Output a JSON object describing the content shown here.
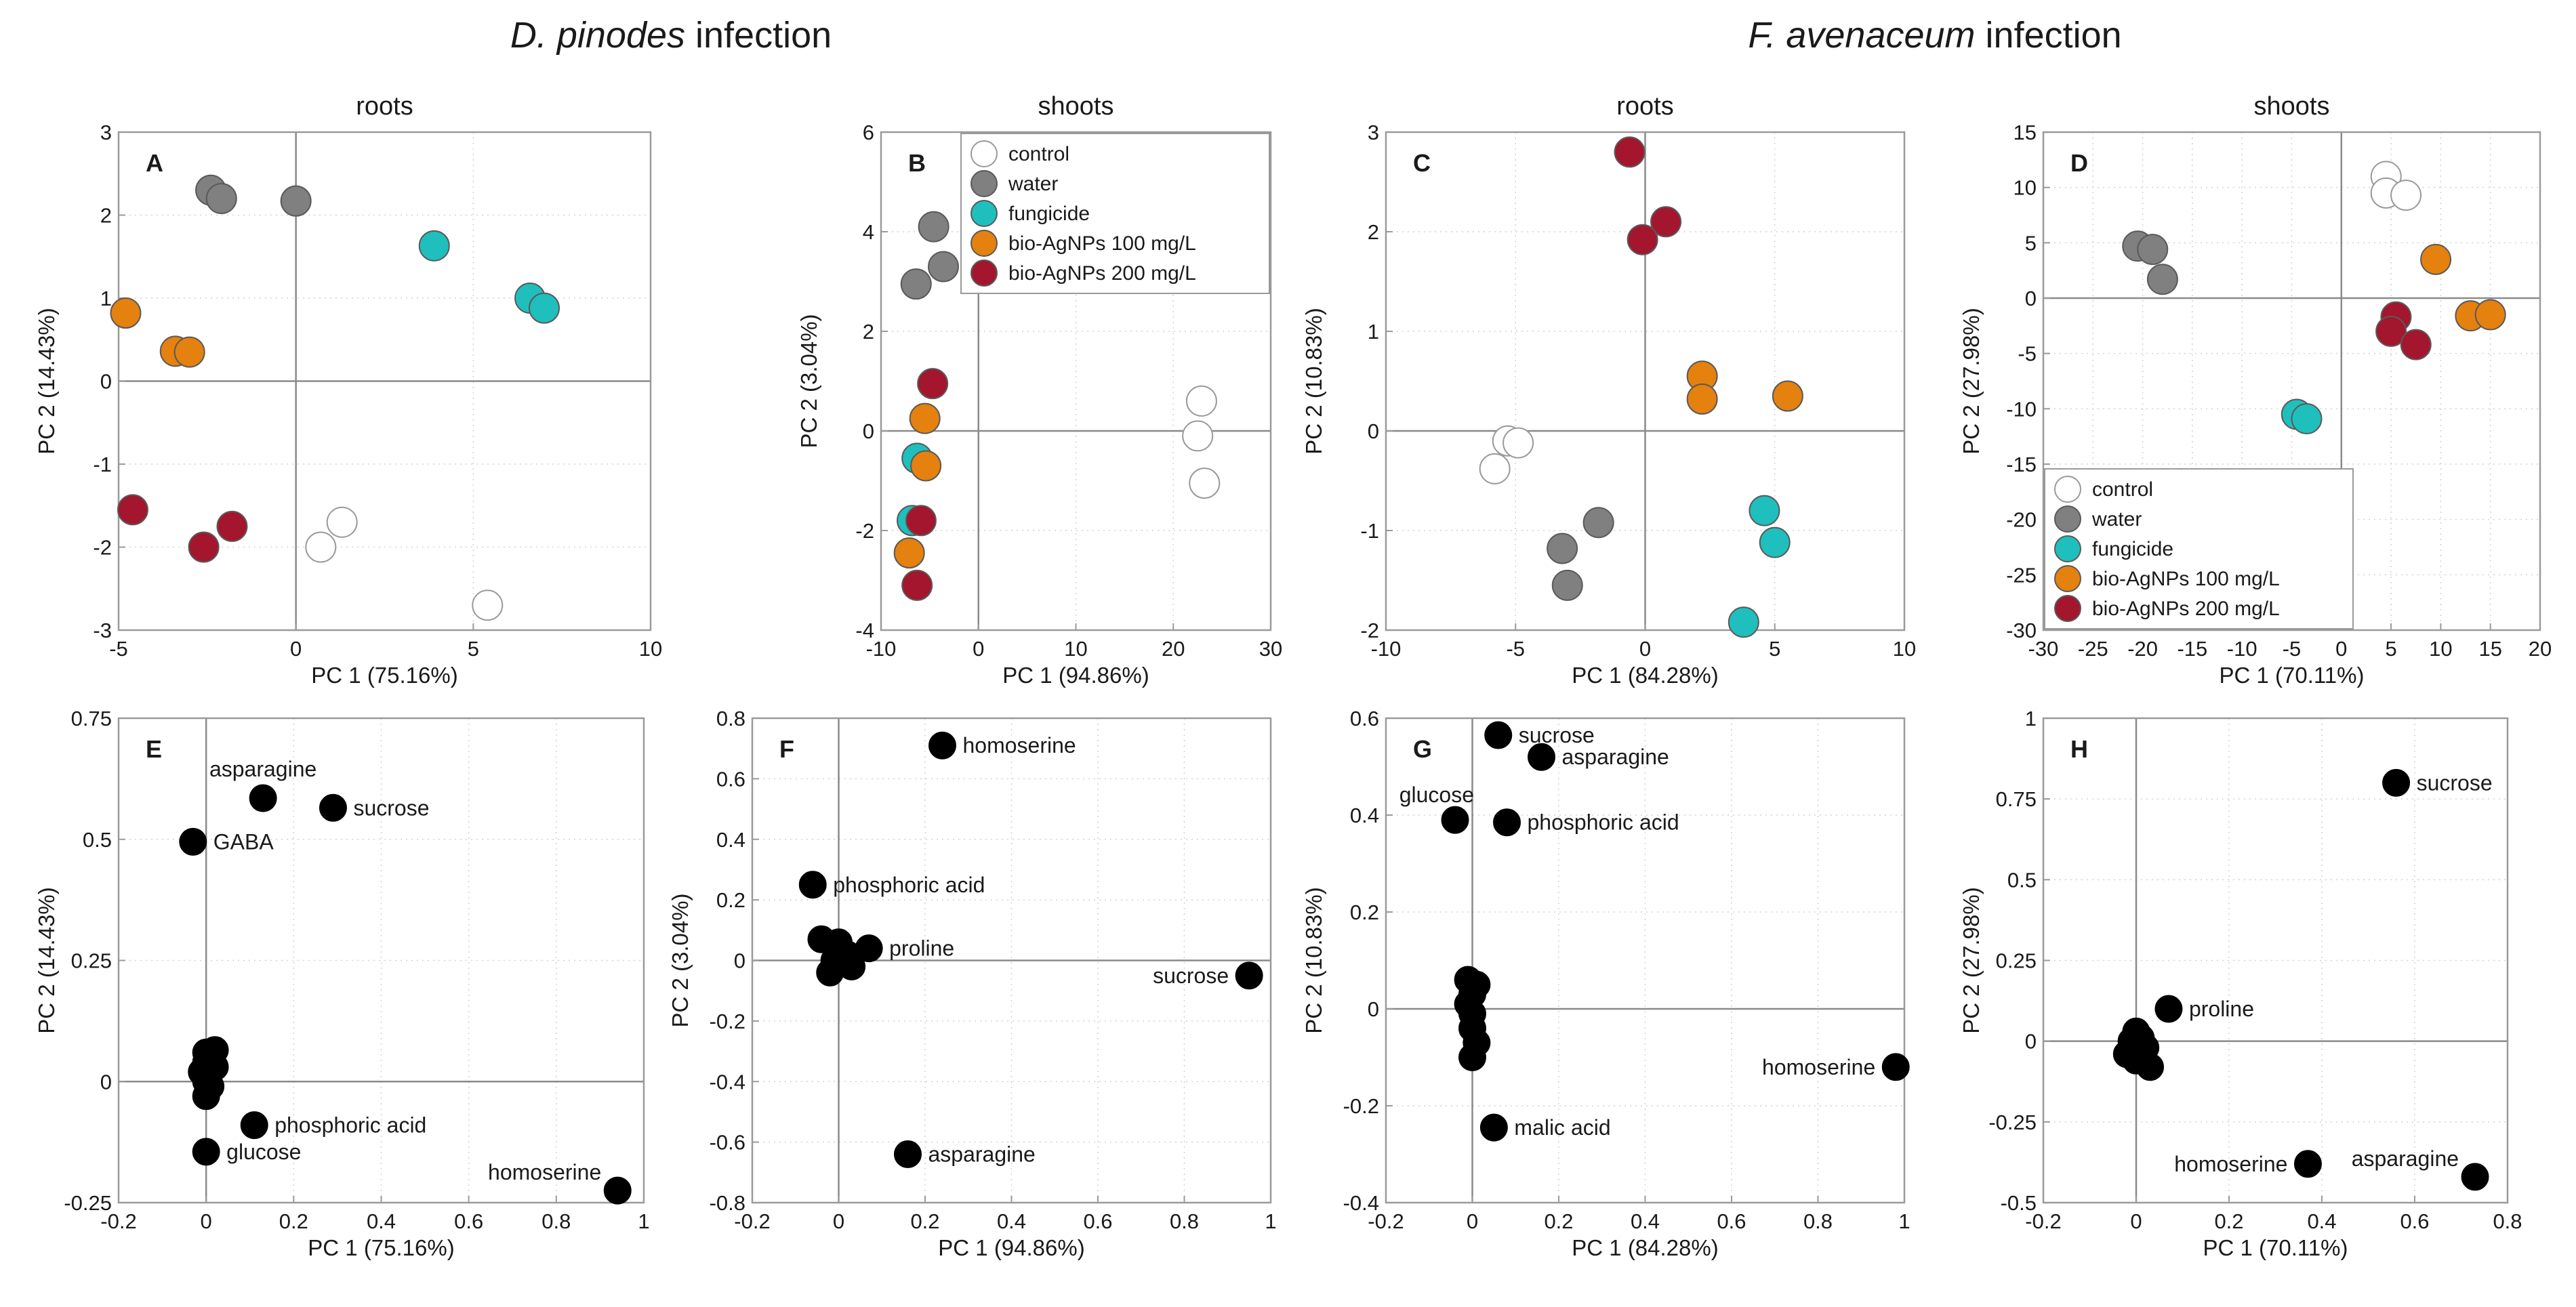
{
  "figure": {
    "section_titles": [
      {
        "species": "D. pinodes",
        "suffix": " infection"
      },
      {
        "species": "F. avenaceum",
        "suffix": " infection"
      }
    ]
  },
  "colors": {
    "control": "#ffffff",
    "water": "#808080",
    "fungicide": "#1fbfbd",
    "bio-AgNPs 100 mg/L": "#e5810f",
    "bio-AgNPs 200 mg/L": "#a3162e",
    "metabolite": "#000000"
  },
  "chart_data": [
    {
      "id": "A",
      "type": "scatter",
      "title": "roots",
      "xlabel": "PC 1 (75.16%)",
      "ylabel": "PC 2 (14.43%)",
      "xlim": [
        -5,
        10
      ],
      "ylim": [
        -3,
        3
      ],
      "xticks": [
        -5,
        0,
        5,
        10
      ],
      "yticks": [
        -3,
        -2,
        -1,
        0,
        1,
        2,
        3
      ],
      "series": [
        {
          "name": "control",
          "points": [
            [
              0.7,
              -2.0
            ],
            [
              1.3,
              -1.7
            ],
            [
              5.4,
              -2.7
            ]
          ]
        },
        {
          "name": "water",
          "points": [
            [
              -2.4,
              2.3
            ],
            [
              -2.1,
              2.2
            ],
            [
              0.0,
              2.17
            ]
          ]
        },
        {
          "name": "fungicide",
          "points": [
            [
              3.9,
              1.63
            ],
            [
              6.6,
              1.0
            ],
            [
              7.0,
              0.88
            ]
          ]
        },
        {
          "name": "bio-AgNPs 100 mg/L",
          "points": [
            [
              -4.8,
              0.82
            ],
            [
              -3.4,
              0.36
            ],
            [
              -3.0,
              0.35
            ]
          ]
        },
        {
          "name": "bio-AgNPs 200 mg/L",
          "points": [
            [
              -4.6,
              -1.55
            ],
            [
              -2.6,
              -2.0
            ],
            [
              -1.8,
              -1.75
            ]
          ]
        }
      ]
    },
    {
      "id": "B",
      "type": "scatter",
      "title": "shoots",
      "xlabel": "PC 1 (94.86%)",
      "ylabel": "PC 2 (3.04%)",
      "xlim": [
        -10,
        30
      ],
      "ylim": [
        -4,
        6
      ],
      "xticks": [
        -10,
        0,
        10,
        20,
        30
      ],
      "yticks": [
        -4,
        -2,
        0,
        2,
        4,
        6
      ],
      "legend": {
        "position": "top-right",
        "entries": [
          "control",
          "water",
          "fungicide",
          "bio-AgNPs 100 mg/L",
          "bio-AgNPs 200 mg/L"
        ]
      },
      "series": [
        {
          "name": "control",
          "points": [
            [
              22.9,
              0.6
            ],
            [
              22.5,
              -0.1
            ],
            [
              23.2,
              -1.05
            ]
          ]
        },
        {
          "name": "water",
          "points": [
            [
              -6.4,
              2.95
            ],
            [
              -4.6,
              4.1
            ],
            [
              -3.6,
              3.3
            ]
          ]
        },
        {
          "name": "fungicide",
          "points": [
            [
              -6.3,
              -0.55
            ],
            [
              -6.8,
              -1.8
            ]
          ]
        },
        {
          "name": "bio-AgNPs 100 mg/L",
          "points": [
            [
              -5.5,
              0.25
            ],
            [
              -5.4,
              -0.7
            ],
            [
              -7.1,
              -2.45
            ]
          ]
        },
        {
          "name": "bio-AgNPs 200 mg/L",
          "points": [
            [
              -4.7,
              0.95
            ],
            [
              -5.9,
              -1.8
            ],
            [
              -6.3,
              -3.1
            ]
          ]
        }
      ]
    },
    {
      "id": "C",
      "type": "scatter",
      "title": "roots",
      "xlabel": "PC 1 (84.28%)",
      "ylabel": "PC 2 (10.83%)",
      "xlim": [
        -10,
        10
      ],
      "ylim": [
        -2,
        3
      ],
      "xticks": [
        -10,
        -5,
        0,
        5,
        10
      ],
      "yticks": [
        -2,
        -1,
        0,
        1,
        2,
        3
      ],
      "series": [
        {
          "name": "control",
          "points": [
            [
              -5.3,
              -0.1
            ],
            [
              -4.9,
              -0.12
            ],
            [
              -5.8,
              -0.38
            ]
          ]
        },
        {
          "name": "water",
          "points": [
            [
              -3.2,
              -1.18
            ],
            [
              -1.8,
              -0.92
            ],
            [
              -3.0,
              -1.55
            ]
          ]
        },
        {
          "name": "fungicide",
          "points": [
            [
              4.6,
              -0.8
            ],
            [
              5.0,
              -1.12
            ],
            [
              3.8,
              -1.92
            ]
          ]
        },
        {
          "name": "bio-AgNPs 100 mg/L",
          "points": [
            [
              2.2,
              0.55
            ],
            [
              2.2,
              0.32
            ],
            [
              5.5,
              0.35
            ]
          ]
        },
        {
          "name": "bio-AgNPs 200 mg/L",
          "points": [
            [
              -0.6,
              2.8
            ],
            [
              0.8,
              2.1
            ],
            [
              -0.1,
              1.92
            ]
          ]
        }
      ]
    },
    {
      "id": "D",
      "type": "scatter",
      "title": "shoots",
      "xlabel": "PC 1 (70.11%)",
      "ylabel": "PC 2 (27.98%)",
      "xlim": [
        -30,
        20
      ],
      "ylim": [
        -30,
        15
      ],
      "xticks": [
        -30,
        -25,
        -20,
        -15,
        -10,
        -5,
        0,
        5,
        10,
        15,
        20
      ],
      "yticks": [
        -30,
        -25,
        -20,
        -15,
        -10,
        -5,
        0,
        5,
        10,
        15
      ],
      "legend": {
        "position": "bottom-left",
        "entries": [
          "control",
          "water",
          "fungicide",
          "bio-AgNPs 100 mg/L",
          "bio-AgNPs 200 mg/L"
        ]
      },
      "series": [
        {
          "name": "control",
          "points": [
            [
              4.5,
              11.0
            ],
            [
              4.5,
              9.5
            ],
            [
              6.5,
              9.3
            ]
          ]
        },
        {
          "name": "water",
          "points": [
            [
              -20.5,
              4.7
            ],
            [
              -19.0,
              4.4
            ],
            [
              -18.0,
              1.7
            ]
          ]
        },
        {
          "name": "fungicide",
          "points": [
            [
              -4.5,
              -10.5
            ],
            [
              -3.5,
              -10.9
            ]
          ]
        },
        {
          "name": "bio-AgNPs 100 mg/L",
          "points": [
            [
              9.5,
              3.5
            ],
            [
              13.0,
              -1.6
            ],
            [
              15.0,
              -1.5
            ]
          ]
        },
        {
          "name": "bio-AgNPs 200 mg/L",
          "points": [
            [
              5.5,
              -1.7
            ],
            [
              5.0,
              -3.0
            ],
            [
              7.5,
              -4.2
            ]
          ]
        }
      ]
    },
    {
      "id": "E",
      "type": "scatter",
      "xlabel": "PC 1 (75.16%)",
      "ylabel": "PC 2 (14.43%)",
      "xlim": [
        -0.2,
        1
      ],
      "ylim": [
        -0.25,
        0.75
      ],
      "xticks": [
        -0.2,
        0,
        0.2,
        0.4,
        0.6,
        0.8,
        1
      ],
      "xticklabels": [
        "-0.2",
        "0",
        "0.2",
        "0.4",
        "0.6",
        "0.8",
        "1"
      ],
      "yticks": [
        -0.25,
        0,
        0.25,
        0.5,
        0.75
      ],
      "yticklabels": [
        "-0.25",
        "0",
        "0.25",
        "0.5",
        "0.75"
      ],
      "points": [
        {
          "x": 0.13,
          "y": 0.585,
          "label": "asparagine",
          "label_side": "above"
        },
        {
          "x": 0.29,
          "y": 0.565,
          "label": "sucrose",
          "label_side": "right"
        },
        {
          "x": -0.03,
          "y": 0.495,
          "label": "GABA",
          "label_side": "right"
        },
        {
          "x": 0.11,
          "y": -0.09,
          "label": "phosphoric acid",
          "label_side": "right"
        },
        {
          "x": 0.0,
          "y": -0.145,
          "label": "glucose",
          "label_side": "right"
        },
        {
          "x": 0.94,
          "y": -0.225,
          "label": "homoserine",
          "label_side": "left-above"
        },
        {
          "x": 0.0,
          "y": 0.06
        },
        {
          "x": 0.02,
          "y": 0.065
        },
        {
          "x": 0.0,
          "y": 0.04
        },
        {
          "x": 0.02,
          "y": 0.03
        },
        {
          "x": -0.01,
          "y": 0.02
        },
        {
          "x": 0.0,
          "y": 0.0
        },
        {
          "x": 0.01,
          "y": -0.01
        },
        {
          "x": 0.0,
          "y": -0.03
        }
      ]
    },
    {
      "id": "F",
      "type": "scatter",
      "xlabel": "PC 1 (94.86%)",
      "ylabel": "PC 2 (3.04%)",
      "xlim": [
        -0.2,
        1
      ],
      "ylim": [
        -0.8,
        0.8
      ],
      "xticks": [
        -0.2,
        0,
        0.2,
        0.4,
        0.6,
        0.8,
        1
      ],
      "xticklabels": [
        "-0.2",
        "0",
        "0.2",
        "0.4",
        "0.6",
        "0.8",
        "1"
      ],
      "yticks": [
        -0.8,
        -0.6,
        -0.4,
        -0.2,
        0,
        0.2,
        0.4,
        0.6,
        0.8
      ],
      "yticklabels": [
        "-0.8",
        "-0.6",
        "-0.4",
        "-0.2",
        "0",
        "0.2",
        "0.4",
        "0.6",
        "0.8"
      ],
      "points": [
        {
          "x": 0.24,
          "y": 0.71,
          "label": "homoserine",
          "label_side": "right"
        },
        {
          "x": -0.06,
          "y": 0.25,
          "label": "phosphoric acid",
          "label_side": "right"
        },
        {
          "x": 0.07,
          "y": 0.04,
          "label": "proline",
          "label_side": "right"
        },
        {
          "x": 0.95,
          "y": -0.05,
          "label": "sucrose",
          "label_side": "left"
        },
        {
          "x": 0.16,
          "y": -0.64,
          "label": "asparagine",
          "label_side": "right"
        },
        {
          "x": -0.04,
          "y": 0.07
        },
        {
          "x": 0.0,
          "y": 0.06
        },
        {
          "x": 0.02,
          "y": 0.02
        },
        {
          "x": -0.01,
          "y": 0.0
        },
        {
          "x": 0.03,
          "y": -0.02
        },
        {
          "x": -0.02,
          "y": -0.04
        }
      ]
    },
    {
      "id": "G",
      "type": "scatter",
      "xlabel": "PC 1 (84.28%)",
      "ylabel": "PC 2 (10.83%)",
      "xlim": [
        -0.2,
        1
      ],
      "ylim": [
        -0.4,
        0.6
      ],
      "xticks": [
        -0.2,
        0,
        0.2,
        0.4,
        0.6,
        0.8,
        1
      ],
      "xticklabels": [
        "-0.2",
        "0",
        "0.2",
        "0.4",
        "0.6",
        "0.8",
        "1"
      ],
      "yticks": [
        -0.4,
        -0.2,
        0,
        0.2,
        0.4,
        0.6
      ],
      "yticklabels": [
        "-0.4",
        "-0.2",
        "0",
        "0.2",
        "0.4",
        "0.6"
      ],
      "points": [
        {
          "x": 0.06,
          "y": 0.565,
          "label": "sucrose",
          "label_side": "right"
        },
        {
          "x": 0.16,
          "y": 0.52,
          "label": "asparagine",
          "label_side": "right"
        },
        {
          "x": -0.04,
          "y": 0.39,
          "label": "glucose",
          "label_side": "above-left"
        },
        {
          "x": 0.08,
          "y": 0.385,
          "label": "phosphoric acid",
          "label_side": "right"
        },
        {
          "x": 0.98,
          "y": -0.12,
          "label": "homoserine",
          "label_side": "left"
        },
        {
          "x": 0.05,
          "y": -0.245,
          "label": "malic acid",
          "label_side": "right"
        },
        {
          "x": -0.01,
          "y": 0.06
        },
        {
          "x": 0.01,
          "y": 0.05
        },
        {
          "x": 0.0,
          "y": 0.03
        },
        {
          "x": -0.01,
          "y": 0.01
        },
        {
          "x": 0.0,
          "y": -0.01
        },
        {
          "x": 0.0,
          "y": -0.04
        },
        {
          "x": 0.01,
          "y": -0.07
        },
        {
          "x": 0.0,
          "y": -0.1
        }
      ]
    },
    {
      "id": "H",
      "type": "scatter",
      "xlabel": "PC 1 (70.11%)",
      "ylabel": "PC 2 (27.98%)",
      "xlim": [
        -0.2,
        0.8
      ],
      "ylim": [
        -0.5,
        1
      ],
      "xticks": [
        -0.2,
        0,
        0.2,
        0.4,
        0.6,
        0.8
      ],
      "xticklabels": [
        "-0.2",
        "0",
        "0.2",
        "0.4",
        "0.6",
        "0.8"
      ],
      "yticks": [
        -0.5,
        -0.25,
        0,
        0.25,
        0.5,
        0.75,
        1
      ],
      "yticklabels": [
        "-0.5",
        "-0.25",
        "0",
        "0.25",
        "0.5",
        "0.75",
        "1"
      ],
      "points": [
        {
          "x": 0.56,
          "y": 0.8,
          "label": "sucrose",
          "label_side": "right"
        },
        {
          "x": 0.07,
          "y": 0.1,
          "label": "proline",
          "label_side": "right"
        },
        {
          "x": 0.37,
          "y": -0.38,
          "label": "homoserine",
          "label_side": "left"
        },
        {
          "x": 0.73,
          "y": -0.42,
          "label": "asparagine",
          "label_side": "left-above"
        },
        {
          "x": 0.0,
          "y": 0.03
        },
        {
          "x": -0.01,
          "y": 0.0
        },
        {
          "x": 0.01,
          "y": 0.01
        },
        {
          "x": 0.02,
          "y": -0.02
        },
        {
          "x": -0.02,
          "y": -0.04
        },
        {
          "x": 0.0,
          "y": -0.06
        },
        {
          "x": 0.03,
          "y": -0.08
        },
        {
          "x": -0.01,
          "y": -0.02
        }
      ]
    }
  ]
}
